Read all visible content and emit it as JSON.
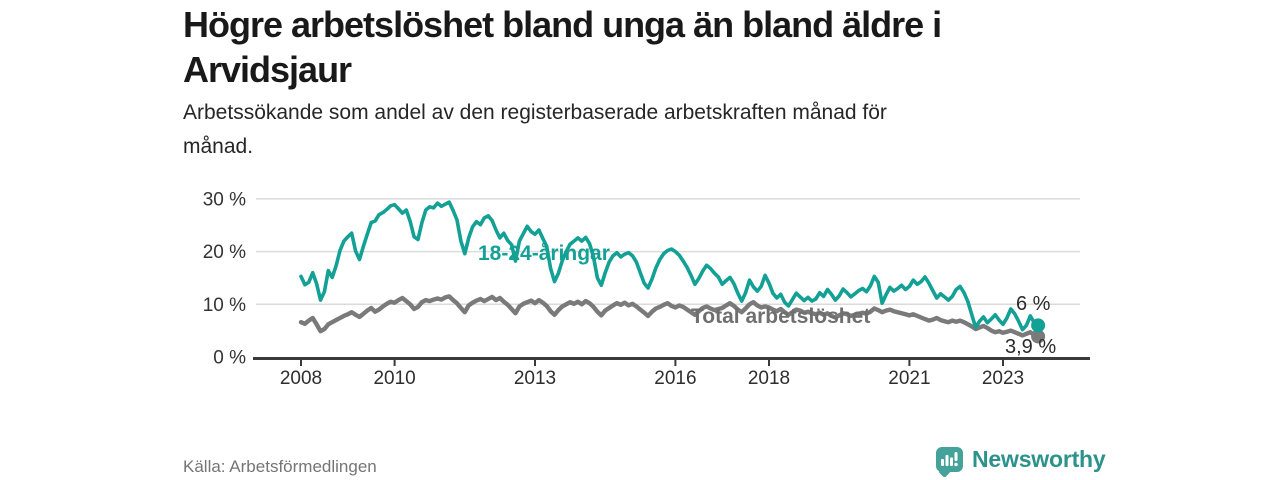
{
  "header": {
    "title_lines": [
      "Högre arbetslöshet bland unga än bland äldre i",
      "Arvidsjaur"
    ],
    "subtitle_lines": [
      "Arbetssökande som andel av den registerbaserade arbetskraften månad för",
      "månad."
    ]
  },
  "chart_data": {
    "type": "line",
    "unit": "%",
    "x_start_year": 2008,
    "points_per_year": 12,
    "ylim": [
      0,
      31
    ],
    "grid": "horizontal",
    "yticks": [
      {
        "value": 0,
        "label": "0 %"
      },
      {
        "value": 10,
        "label": "10 %"
      },
      {
        "value": 20,
        "label": "20 %"
      },
      {
        "value": 30,
        "label": "30 %"
      }
    ],
    "xticks": [
      {
        "year": 2008,
        "label": "2008"
      },
      {
        "year": 2010,
        "label": "2010"
      },
      {
        "year": 2013,
        "label": "2013"
      },
      {
        "year": 2016,
        "label": "2016"
      },
      {
        "year": 2018,
        "label": "2018"
      },
      {
        "year": 2021,
        "label": "2021"
      },
      {
        "year": 2023,
        "label": "2023"
      }
    ],
    "series": [
      {
        "id": "total",
        "name": "Total arbetslöshet",
        "color": "#7A7A7A",
        "end_label": "3,9 %",
        "values": [
          6.6,
          6.3,
          6.9,
          7.4,
          6.2,
          4.9,
          5.3,
          6.2,
          6.6,
          7.0,
          7.4,
          7.8,
          8.1,
          8.5,
          8.0,
          7.6,
          8.2,
          8.8,
          9.3,
          8.6,
          9.0,
          9.6,
          10.1,
          10.5,
          10.3,
          10.8,
          11.2,
          10.6,
          10.0,
          9.1,
          9.5,
          10.4,
          10.8,
          10.6,
          10.9,
          11.1,
          10.9,
          11.3,
          11.5,
          10.8,
          10.2,
          9.3,
          8.5,
          9.8,
          10.3,
          10.7,
          11.0,
          10.6,
          11.0,
          11.4,
          10.8,
          11.2,
          10.5,
          9.9,
          9.1,
          8.3,
          9.6,
          10.1,
          10.4,
          10.7,
          10.2,
          10.8,
          10.3,
          9.7,
          8.7,
          8.0,
          8.9,
          9.6,
          10.0,
          10.4,
          10.1,
          10.5,
          10.0,
          10.6,
          10.2,
          9.5,
          8.6,
          7.9,
          8.8,
          9.3,
          9.8,
          10.2,
          9.9,
          10.3,
          9.8,
          10.1,
          9.6,
          9.0,
          8.4,
          7.8,
          8.6,
          9.2,
          9.5,
          9.9,
          10.2,
          9.7,
          9.4,
          9.8,
          9.5,
          9.0,
          8.5,
          8.0,
          8.7,
          9.3,
          9.6,
          9.2,
          8.9,
          9.1,
          9.3,
          9.8,
          10.2,
          9.7,
          9.0,
          8.5,
          9.2,
          10.0,
          10.4,
          9.8,
          9.4,
          9.6,
          9.4,
          9.0,
          8.7,
          9.1,
          8.5,
          8.0,
          8.5,
          9.0,
          8.8,
          8.4,
          8.6,
          8.3,
          8.1,
          8.4,
          8.0,
          8.3,
          7.8,
          7.5,
          7.9,
          8.3,
          8.1,
          7.8,
          8.0,
          8.2,
          8.4,
          8.2,
          8.6,
          9.2,
          8.9,
          8.5,
          8.8,
          9.0,
          8.7,
          8.5,
          8.3,
          8.1,
          7.9,
          8.1,
          7.8,
          7.5,
          7.2,
          6.9,
          7.1,
          7.4,
          7.0,
          6.8,
          6.6,
          6.9,
          6.7,
          6.9,
          6.6,
          6.2,
          5.8,
          5.3,
          5.6,
          5.9,
          5.5,
          5.0,
          4.7,
          4.9,
          4.6,
          4.8,
          5.0,
          4.7,
          4.4,
          4.1,
          4.4,
          4.7,
          4.2,
          3.9
        ]
      },
      {
        "id": "youth",
        "name": "18-24-åringar",
        "color": "#13A095",
        "end_label": "6 %",
        "values": [
          15.3,
          13.7,
          14.2,
          16.0,
          13.9,
          10.8,
          12.4,
          16.4,
          15.1,
          17.3,
          20.2,
          22.0,
          22.8,
          23.5,
          20.1,
          18.5,
          21.0,
          23.3,
          25.5,
          25.8,
          27.0,
          27.4,
          28.0,
          28.7,
          28.9,
          28.1,
          27.3,
          27.9,
          25.7,
          22.8,
          22.3,
          25.5,
          27.9,
          28.5,
          28.3,
          29.2,
          28.6,
          29.0,
          29.4,
          27.8,
          26.0,
          22.0,
          19.6,
          22.6,
          24.7,
          25.7,
          25.1,
          26.4,
          26.8,
          25.9,
          24.1,
          22.6,
          23.5,
          22.1,
          21.3,
          18.2,
          22.0,
          23.4,
          24.8,
          23.8,
          23.3,
          24.1,
          22.5,
          21.0,
          16.8,
          14.3,
          15.9,
          18.3,
          20.0,
          21.4,
          22.0,
          22.6,
          22.0,
          22.7,
          21.5,
          19.0,
          15.0,
          13.6,
          16.0,
          18.0,
          19.2,
          19.8,
          19.0,
          19.5,
          19.8,
          19.2,
          18.0,
          16.0,
          14.0,
          13.1,
          14.8,
          16.9,
          18.5,
          19.6,
          20.2,
          20.5,
          20.0,
          19.3,
          18.2,
          17.0,
          15.5,
          13.8,
          14.9,
          16.3,
          17.4,
          16.8,
          15.9,
          15.2,
          13.8,
          14.5,
          15.1,
          13.9,
          12.1,
          10.6,
          12.2,
          14.6,
          13.3,
          12.5,
          13.4,
          15.5,
          14.0,
          12.1,
          11.2,
          11.9,
          10.4,
          9.7,
          10.9,
          12.1,
          11.4,
          10.7,
          11.3,
          10.6,
          11.0,
          12.2,
          11.5,
          12.8,
          11.9,
          10.8,
          11.6,
          12.9,
          12.2,
          11.4,
          12.0,
          12.6,
          13.0,
          12.4,
          13.5,
          15.3,
          14.2,
          10.2,
          11.8,
          13.2,
          12.5,
          13.0,
          13.6,
          12.8,
          13.4,
          14.6,
          13.8,
          14.3,
          15.2,
          14.0,
          12.6,
          11.2,
          12.0,
          11.4,
          10.8,
          11.5,
          12.8,
          13.4,
          12.2,
          10.5,
          8.0,
          5.6,
          6.8,
          7.6,
          6.5,
          7.2,
          8.0,
          7.0,
          6.2,
          7.4,
          9.1,
          8.2,
          6.8,
          5.2,
          6.0,
          7.8,
          6.5,
          6.0
        ]
      }
    ]
  },
  "footer": {
    "source": "Källa: Arbetsförmedlingen",
    "brand": "Newsworthy"
  },
  "colors": {
    "accent_teal": "#13A095",
    "line_gray": "#7A7A7A",
    "grid_gray": "#DBDBDB",
    "axis_dark": "#3A3A3A",
    "logo_teal": "#45A29A",
    "logo_text_teal": "#2D928B"
  }
}
